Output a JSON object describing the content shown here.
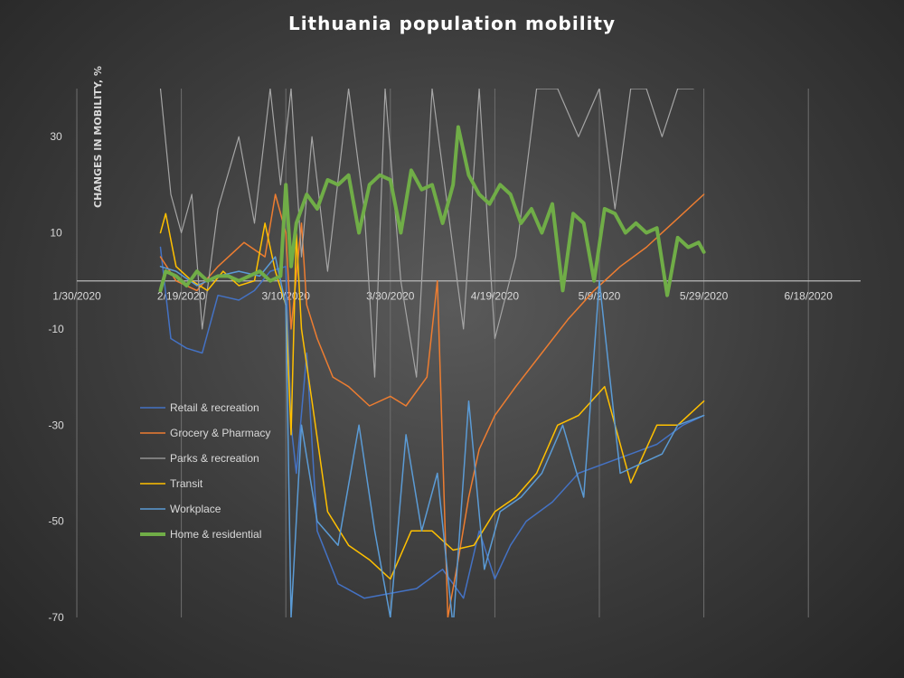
{
  "chart_data": {
    "type": "line",
    "title": "Lithuania population mobility",
    "ylabel": "CHANGES IN MOBILITY, %",
    "xlabel": "",
    "ylim": [
      -70,
      40
    ],
    "xlim": [
      "2020-01-30",
      "2020-06-28"
    ],
    "yticks": [
      -70,
      -50,
      -30,
      -10,
      10,
      30
    ],
    "xticks": [
      "1/30/2020",
      "2/19/2020",
      "3/10/2020",
      "3/30/2020",
      "4/19/2020",
      "5/9/2020",
      "5/29/2020",
      "6/18/2020"
    ],
    "grid": "vertical",
    "legend_position": "lower-left",
    "series": [
      {
        "name": "Retail & recreation",
        "color": "#4472c4",
        "width": 1.5,
        "x": [
          "2020-02-15",
          "2020-02-17",
          "2020-02-20",
          "2020-02-23",
          "2020-02-26",
          "2020-03-01",
          "2020-03-04",
          "2020-03-07",
          "2020-03-10",
          "2020-03-11",
          "2020-03-12",
          "2020-03-14",
          "2020-03-16",
          "2020-03-20",
          "2020-03-25",
          "2020-03-30",
          "2020-04-04",
          "2020-04-09",
          "2020-04-13",
          "2020-04-16",
          "2020-04-19",
          "2020-04-22",
          "2020-04-25",
          "2020-04-30",
          "2020-05-05",
          "2020-05-10",
          "2020-05-15",
          "2020-05-20",
          "2020-05-25",
          "2020-05-29"
        ],
        "y": [
          7,
          -12,
          -14,
          -15,
          -3,
          -4,
          -2,
          2,
          3,
          -30,
          -40,
          -15,
          -52,
          -63,
          -66,
          -65,
          -64,
          -60,
          -66,
          -52,
          -62,
          -55,
          -50,
          -46,
          -40,
          -38,
          -36,
          -34,
          -30,
          -28
        ]
      },
      {
        "name": "Grocery & Pharmacy",
        "color": "#ed7d31",
        "width": 1.5,
        "x": [
          "2020-02-15",
          "2020-02-18",
          "2020-02-22",
          "2020-02-26",
          "2020-03-02",
          "2020-03-06",
          "2020-03-08",
          "2020-03-10",
          "2020-03-11",
          "2020-03-13",
          "2020-03-14",
          "2020-03-16",
          "2020-03-19",
          "2020-03-22",
          "2020-03-26",
          "2020-03-30",
          "2020-04-02",
          "2020-04-06",
          "2020-04-08",
          "2020-04-10",
          "2020-04-12",
          "2020-04-14",
          "2020-04-16",
          "2020-04-19",
          "2020-04-23",
          "2020-04-28",
          "2020-05-03",
          "2020-05-08",
          "2020-05-13",
          "2020-05-18",
          "2020-05-23",
          "2020-05-29"
        ],
        "y": [
          5,
          0,
          -2,
          3,
          8,
          5,
          18,
          10,
          -10,
          12,
          -5,
          -12,
          -20,
          -22,
          -26,
          -24,
          -26,
          -20,
          0,
          -70,
          -58,
          -45,
          -35,
          -28,
          -22,
          -15,
          -8,
          -2,
          3,
          7,
          12,
          18
        ]
      },
      {
        "name": "Parks & recreation",
        "color": "#a5a5a5",
        "width": 1.2,
        "x": [
          "2020-02-15",
          "2020-02-17",
          "2020-02-19",
          "2020-02-21",
          "2020-02-23",
          "2020-02-26",
          "2020-03-01",
          "2020-03-04",
          "2020-03-07",
          "2020-03-09",
          "2020-03-11",
          "2020-03-13",
          "2020-03-15",
          "2020-03-18",
          "2020-03-22",
          "2020-03-25",
          "2020-03-27",
          "2020-03-29",
          "2020-04-01",
          "2020-04-04",
          "2020-04-07",
          "2020-04-10",
          "2020-04-13",
          "2020-04-16",
          "2020-04-19",
          "2020-04-23",
          "2020-04-27",
          "2020-05-01",
          "2020-05-05",
          "2020-05-09",
          "2020-05-12",
          "2020-05-15",
          "2020-05-18",
          "2020-05-21",
          "2020-05-24",
          "2020-05-27"
        ],
        "y": [
          40,
          18,
          10,
          18,
          -10,
          15,
          30,
          12,
          40,
          20,
          40,
          5,
          30,
          2,
          40,
          15,
          -20,
          40,
          0,
          -20,
          40,
          15,
          -10,
          40,
          -12,
          5,
          40,
          40,
          30,
          40,
          15,
          40,
          40,
          30,
          40,
          40
        ]
      },
      {
        "name": "Transit",
        "color": "#ffc000",
        "width": 1.5,
        "x": [
          "2020-02-15",
          "2020-02-16",
          "2020-02-18",
          "2020-02-21",
          "2020-02-24",
          "2020-02-27",
          "2020-03-01",
          "2020-03-04",
          "2020-03-06",
          "2020-03-08",
          "2020-03-10",
          "2020-03-11",
          "2020-03-12",
          "2020-03-13",
          "2020-03-15",
          "2020-03-18",
          "2020-03-22",
          "2020-03-26",
          "2020-03-30",
          "2020-04-03",
          "2020-04-07",
          "2020-04-11",
          "2020-04-15",
          "2020-04-19",
          "2020-04-23",
          "2020-04-27",
          "2020-05-01",
          "2020-05-05",
          "2020-05-10",
          "2020-05-15",
          "2020-05-20",
          "2020-05-24",
          "2020-05-29"
        ],
        "y": [
          10,
          14,
          3,
          0,
          -2,
          2,
          -1,
          0,
          12,
          2,
          -5,
          -32,
          10,
          -10,
          -25,
          -48,
          -55,
          -58,
          -62,
          -52,
          -52,
          -56,
          -55,
          -48,
          -45,
          -40,
          -30,
          -28,
          -22,
          -42,
          -30,
          -30,
          -25
        ]
      },
      {
        "name": "Workplace",
        "color": "#5b9bd5",
        "width": 1.5,
        "x": [
          "2020-02-15",
          "2020-02-18",
          "2020-02-22",
          "2020-02-26",
          "2020-03-01",
          "2020-03-05",
          "2020-03-08",
          "2020-03-10",
          "2020-03-11",
          "2020-03-13",
          "2020-03-16",
          "2020-03-20",
          "2020-03-24",
          "2020-03-27",
          "2020-03-30",
          "2020-04-02",
          "2020-04-05",
          "2020-04-08",
          "2020-04-11",
          "2020-04-14",
          "2020-04-17",
          "2020-04-20",
          "2020-04-24",
          "2020-04-28",
          "2020-05-02",
          "2020-05-06",
          "2020-05-09",
          "2020-05-13",
          "2020-05-17",
          "2020-05-21",
          "2020-05-24",
          "2020-05-29"
        ],
        "y": [
          3,
          2,
          -1,
          1,
          2,
          1,
          5,
          -5,
          -70,
          -30,
          -50,
          -55,
          -30,
          -52,
          -70,
          -32,
          -52,
          -40,
          -72,
          -25,
          -60,
          -48,
          -45,
          -40,
          -30,
          -45,
          0,
          -40,
          -38,
          -36,
          -30,
          -28
        ]
      },
      {
        "name": "Home & residential",
        "color": "#70ad47",
        "width": 4,
        "x": [
          "2020-02-15",
          "2020-02-16",
          "2020-02-18",
          "2020-02-20",
          "2020-02-22",
          "2020-02-24",
          "2020-02-26",
          "2020-02-28",
          "2020-03-01",
          "2020-03-03",
          "2020-03-05",
          "2020-03-07",
          "2020-03-09",
          "2020-03-10",
          "2020-03-11",
          "2020-03-12",
          "2020-03-14",
          "2020-03-16",
          "2020-03-18",
          "2020-03-20",
          "2020-03-22",
          "2020-03-24",
          "2020-03-26",
          "2020-03-28",
          "2020-03-30",
          "2020-04-01",
          "2020-04-03",
          "2020-04-05",
          "2020-04-07",
          "2020-04-09",
          "2020-04-11",
          "2020-04-12",
          "2020-04-14",
          "2020-04-16",
          "2020-04-18",
          "2020-04-20",
          "2020-04-22",
          "2020-04-24",
          "2020-04-26",
          "2020-04-28",
          "2020-04-30",
          "2020-05-02",
          "2020-05-04",
          "2020-05-06",
          "2020-05-08",
          "2020-05-10",
          "2020-05-12",
          "2020-05-14",
          "2020-05-16",
          "2020-05-18",
          "2020-05-20",
          "2020-05-22",
          "2020-05-24",
          "2020-05-26",
          "2020-05-28",
          "2020-05-29"
        ],
        "y": [
          -2,
          2,
          1,
          -1,
          2,
          0,
          1,
          1,
          0,
          1,
          2,
          0,
          1,
          20,
          3,
          12,
          18,
          15,
          21,
          20,
          22,
          10,
          20,
          22,
          21,
          10,
          23,
          19,
          20,
          12,
          20,
          32,
          22,
          18,
          16,
          20,
          18,
          12,
          15,
          10,
          16,
          -2,
          14,
          12,
          0,
          15,
          14,
          10,
          12,
          10,
          11,
          -3,
          9,
          7,
          8,
          6
        ]
      }
    ]
  }
}
